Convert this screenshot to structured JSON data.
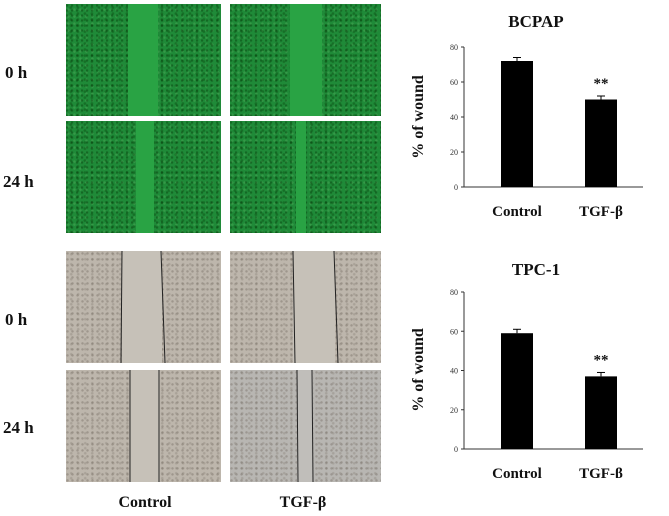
{
  "row_labels": [
    "0 h",
    "24 h",
    "0 h",
    "24 h"
  ],
  "column_labels": [
    "Control",
    "TGF-β"
  ],
  "chart_data": [
    {
      "type": "bar",
      "title": "BCPAP",
      "ylabel": "% of wound",
      "categories": [
        "Control",
        "TGF-β"
      ],
      "values": [
        72,
        50
      ],
      "errors": [
        2,
        2
      ],
      "significance": [
        "",
        "**"
      ],
      "ylim": [
        0,
        80
      ],
      "yticks": [
        0,
        20,
        40,
        60,
        80
      ],
      "bar_color": "#000000"
    },
    {
      "type": "bar",
      "title": "TPC-1",
      "ylabel": "% of wound",
      "categories": [
        "Control",
        "TGF-β"
      ],
      "values": [
        59,
        37
      ],
      "errors": [
        2,
        2
      ],
      "significance": [
        "",
        "**"
      ],
      "ylim": [
        0,
        80
      ],
      "yticks": [
        0,
        20,
        40,
        60,
        80
      ],
      "bar_color": "#000000"
    }
  ]
}
